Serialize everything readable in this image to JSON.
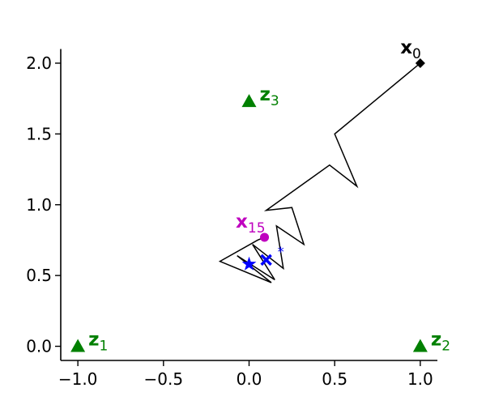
{
  "chart_data": {
    "type": "line",
    "xlim": [
      -1.1,
      1.1
    ],
    "ylim": [
      -0.1,
      2.1
    ],
    "xticks": [
      {
        "value": -1,
        "label": "−1.0"
      },
      {
        "value": -0.5,
        "label": "−0.5"
      },
      {
        "value": 0,
        "label": "0.0"
      },
      {
        "value": 0.5,
        "label": "0.5"
      },
      {
        "value": 1,
        "label": "1.0"
      }
    ],
    "yticks": [
      {
        "value": 0,
        "label": "0.0"
      },
      {
        "value": 0.5,
        "label": "0.5"
      },
      {
        "value": 1,
        "label": "1.0"
      },
      {
        "value": 1.5,
        "label": "1.5"
      },
      {
        "value": 2,
        "label": "2.0"
      }
    ],
    "series": [
      {
        "color": "#000000",
        "x": [
          1.0,
          0.5,
          0.63,
          0.47,
          0.1,
          0.25,
          0.32,
          0.16,
          0.2,
          0.02,
          0.15,
          -0.07,
          0.13,
          -0.17,
          0.05,
          0.09
        ],
        "y": [
          2.0,
          1.5,
          1.13,
          1.28,
          0.96,
          0.98,
          0.72,
          0.85,
          0.55,
          0.72,
          0.47,
          0.64,
          0.45,
          0.6,
          0.75,
          0.77
        ]
      }
    ],
    "markers": [
      {
        "x": -1,
        "y": 0,
        "shape": "triangle",
        "color": "#008000",
        "label": "z",
        "sub": "1",
        "label_side": "right"
      },
      {
        "x": 1,
        "y": 0,
        "shape": "triangle",
        "color": "#008000",
        "label": "z",
        "sub": "2",
        "label_side": "right"
      },
      {
        "x": 0,
        "y": 1.73,
        "shape": "triangle",
        "color": "#008000",
        "label": "z",
        "sub": "3",
        "label_side": "right"
      },
      {
        "x": 1,
        "y": 2,
        "shape": "diamond",
        "color": "#000000",
        "label": "x",
        "sub": "0",
        "label_side": "upper-left"
      },
      {
        "x": 0.09,
        "y": 0.77,
        "shape": "circle",
        "color": "#bf00bf",
        "label": "x",
        "sub": "15",
        "label_side": "upper-left"
      },
      {
        "x": 0,
        "y": 0.58,
        "shape": "star",
        "color": "#0000ff"
      },
      {
        "x": 0.1,
        "y": 0.61,
        "shape": "x",
        "color": "#0000ff",
        "label": "*",
        "label_side": "superscript"
      }
    ]
  }
}
